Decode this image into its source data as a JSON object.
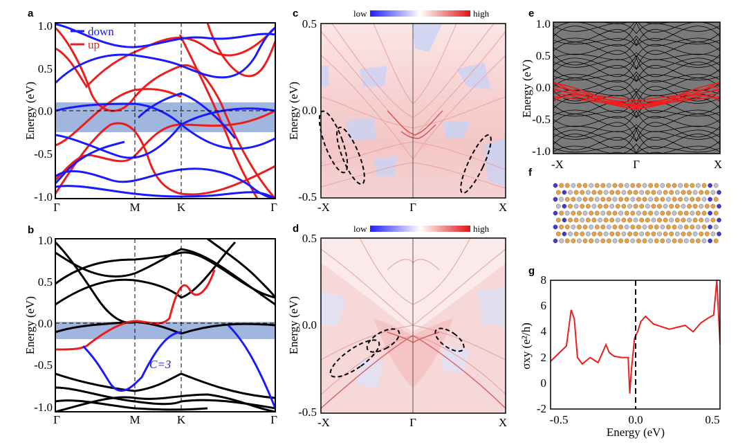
{
  "panels": {
    "a": {
      "letter": "a",
      "ylabel": "Energy (eV)",
      "yticks": [
        "1.0",
        "0.5",
        "0.0",
        "-0.5",
        "-1.0"
      ],
      "xticks": [
        "Γ",
        "M",
        "K",
        "Γ"
      ],
      "legend": {
        "down": "down",
        "up": "up"
      },
      "colors": {
        "down": "#1a1aff",
        "up": "#ee1c1c",
        "band_window": "#8fa9d8"
      }
    },
    "b": {
      "letter": "b",
      "ylabel": "Energy (eV)",
      "yticks": [
        "1.0",
        "0.5",
        "0.0",
        "-0.5",
        "-1.0"
      ],
      "xticks": [
        "Γ",
        "M",
        "K",
        "Γ"
      ],
      "annotation": "C=3",
      "colors": {
        "bands": "#000000",
        "upper": "#ee1c1c",
        "lower": "#1a1aff"
      }
    },
    "c": {
      "letter": "c",
      "ylabel": "Energy (eV)",
      "yticks": [
        "0.5",
        "0.0",
        "-0.5"
      ],
      "xticks": [
        "-X",
        "Γ",
        "X"
      ],
      "colorbar": {
        "low": "low",
        "high": "high"
      }
    },
    "d": {
      "letter": "d",
      "ylabel": "Energy (eV)",
      "yticks": [
        "0.5",
        "0.0",
        "-0.5"
      ],
      "xticks": [
        "-X",
        "Γ",
        "X"
      ],
      "colorbar": {
        "low": "low",
        "high": "high"
      }
    },
    "e": {
      "letter": "e",
      "ylabel": "Energy (eV)",
      "yticks": [
        "1.0",
        "0.5",
        "0.0",
        "-0.5",
        "-1.0"
      ],
      "xticks": [
        "-X",
        "Γ",
        "X"
      ]
    },
    "f": {
      "letter": "f"
    },
    "g": {
      "letter": "g",
      "ylabel": "σxy (e²/h)",
      "xlabel": "Energy (eV)",
      "yticks": [
        "8",
        "6",
        "4",
        "2",
        "0",
        "-2"
      ],
      "xticks": [
        "-0.5",
        "0.0",
        "0.5"
      ]
    }
  },
  "chart_data": [
    {
      "panel": "a",
      "type": "line",
      "title": "",
      "xlabel": "",
      "ylabel": "Energy (eV)",
      "x": [
        "Γ",
        "M",
        "K",
        "Γ"
      ],
      "ylim": [
        -1.0,
        1.0
      ],
      "series": [
        {
          "name": "down",
          "color": "#1a1aff"
        },
        {
          "name": "up",
          "color": "#ee1c1c"
        }
      ],
      "shaded_window": [
        -0.25,
        0.08
      ]
    },
    {
      "panel": "b",
      "type": "line",
      "title": "",
      "ylabel": "Energy (eV)",
      "x": [
        "Γ",
        "M",
        "K",
        "Γ"
      ],
      "ylim": [
        -1.0,
        1.0
      ],
      "annotation": "C=3",
      "shaded_window": [
        -0.15,
        0.05
      ]
    },
    {
      "panel": "c",
      "type": "heatmap",
      "ylabel": "Energy (eV)",
      "x": [
        "-X",
        "Γ",
        "X"
      ],
      "ylim": [
        -0.5,
        0.5
      ],
      "colorbar": [
        "low",
        "high"
      ]
    },
    {
      "panel": "d",
      "type": "heatmap",
      "ylabel": "Energy (eV)",
      "x": [
        "-X",
        "Γ",
        "X"
      ],
      "ylim": [
        -0.5,
        0.5
      ],
      "colorbar": [
        "low",
        "high"
      ]
    },
    {
      "panel": "e",
      "type": "line",
      "ylabel": "Energy (eV)",
      "x": [
        "-X",
        "Γ",
        "X"
      ],
      "ylim": [
        -1.0,
        1.0
      ]
    },
    {
      "panel": "g",
      "type": "line",
      "xlabel": "Energy (eV)",
      "ylabel": "σxy (e²/h)",
      "xlim": [
        -0.55,
        0.52
      ],
      "ylim": [
        -2,
        8
      ],
      "vline_at": 0.0,
      "x": [
        -0.55,
        -0.5,
        -0.45,
        -0.42,
        -0.4,
        -0.38,
        -0.35,
        -0.3,
        -0.25,
        -0.2,
        -0.18,
        -0.15,
        -0.1,
        -0.06,
        -0.05,
        -0.04,
        -0.02,
        0.0,
        0.02,
        0.05,
        0.1,
        0.2,
        0.3,
        0.35,
        0.4,
        0.45,
        0.48,
        0.5,
        0.52
      ],
      "values": [
        1.7,
        2.3,
        2.9,
        5.7,
        5.0,
        2.0,
        1.5,
        2.0,
        1.6,
        3.0,
        2.4,
        2.1,
        2.0,
        2.0,
        -0.8,
        1.0,
        3.5,
        4.0,
        4.8,
        5.2,
        4.6,
        4.2,
        4.5,
        4.0,
        4.7,
        5.1,
        5.3,
        8.0,
        3.0
      ]
    }
  ]
}
